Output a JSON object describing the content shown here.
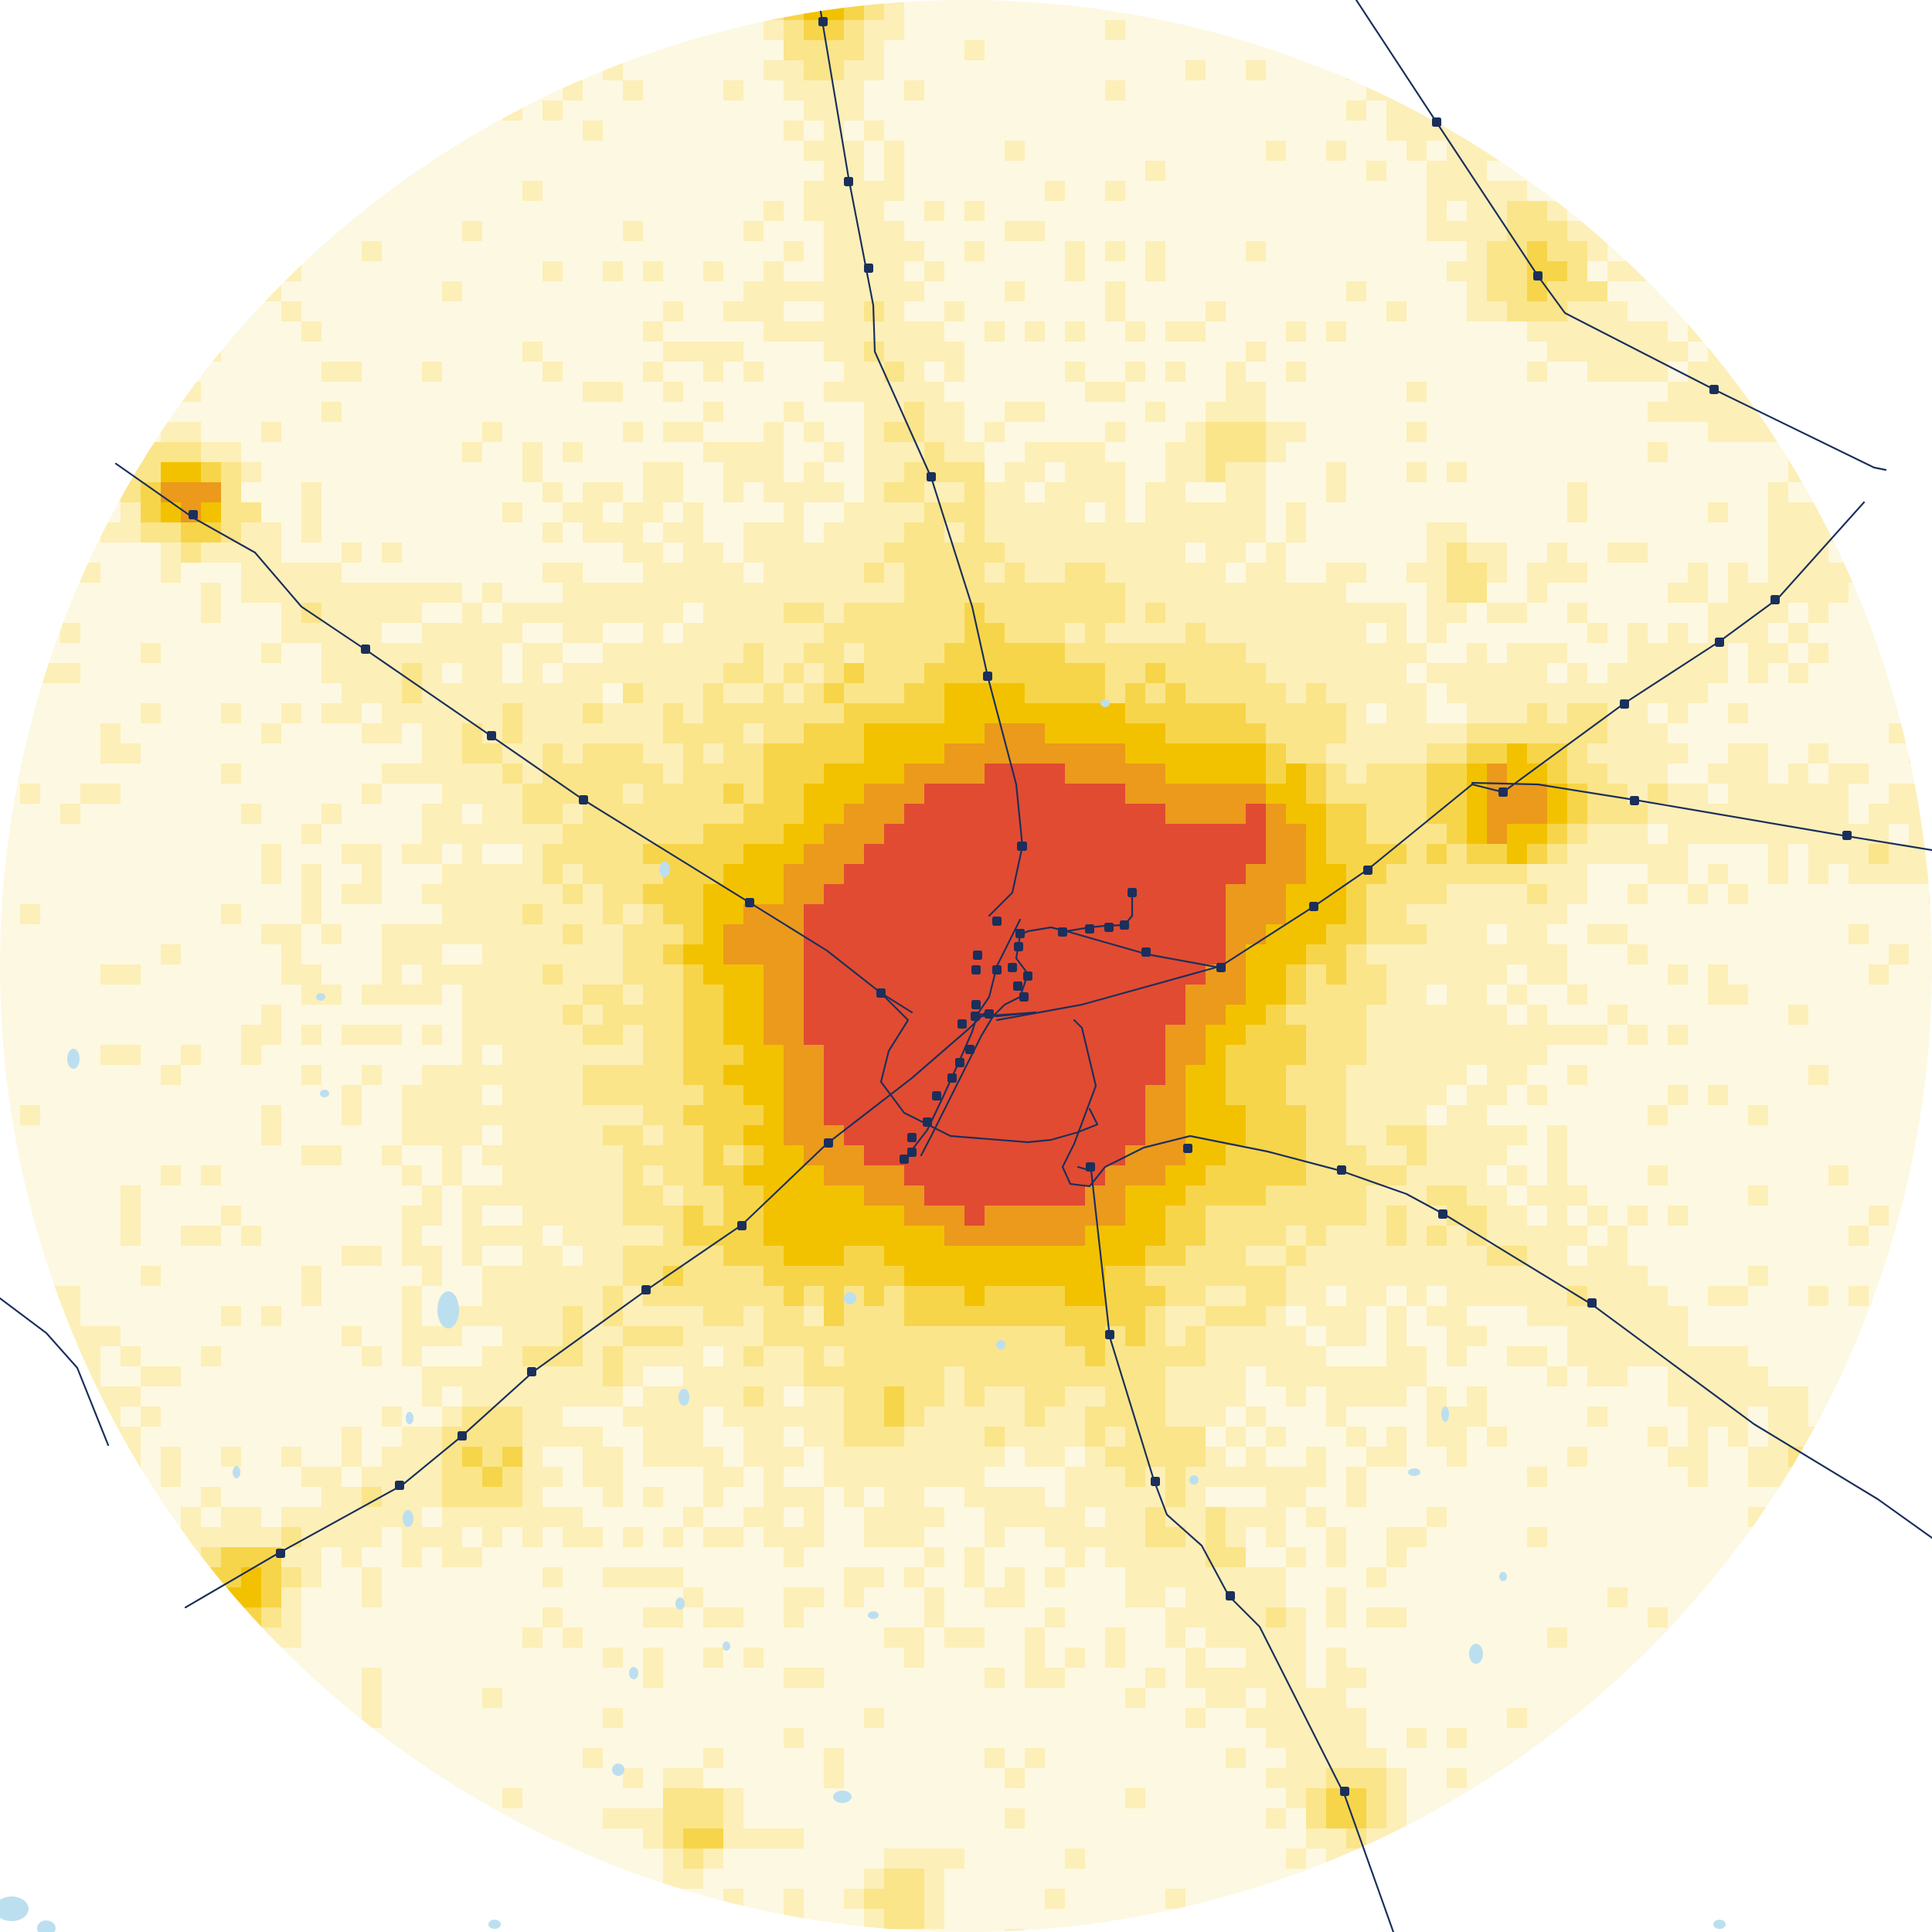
{
  "map": {
    "type": "population-density-heatmap",
    "shape": "circle",
    "grid_resolution": "square cells",
    "density_colors": [
      "#fdf8e1",
      "#fcefb8",
      "#fae58a",
      "#f7d54a",
      "#f2c200",
      "#eb9a1c",
      "#e14b32"
    ],
    "density_levels": 7,
    "transit_color": "#1b2f5c",
    "water_color": "#bcdff0",
    "background": "#ffffff",
    "labels": [],
    "rail_lines": [
      {
        "id": "line-north"
      },
      {
        "id": "line-northwest"
      },
      {
        "id": "line-northeast"
      },
      {
        "id": "line-east"
      },
      {
        "id": "line-east-branch"
      },
      {
        "id": "line-southeast"
      },
      {
        "id": "line-south"
      },
      {
        "id": "line-southwest"
      },
      {
        "id": "line-west-edge"
      },
      {
        "id": "line-downtown-metro"
      }
    ]
  }
}
